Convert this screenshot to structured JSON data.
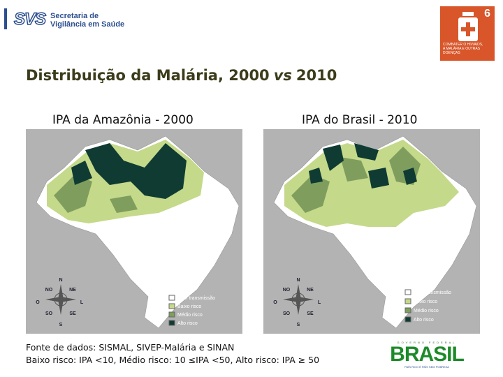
{
  "header": {
    "logo_abbr": "SVS",
    "logo_line1": "Secretaria de",
    "logo_line2": "Vigilância em Saúde"
  },
  "badge": {
    "number": "6",
    "lines": [
      "COMBATER O HIV/AIDS,",
      "A MALÁRIA E OUTRAS",
      "DOENÇAS"
    ]
  },
  "title": {
    "before": "Distribuição da Malária, 2000",
    "italic": "vs",
    "after": "2010"
  },
  "maps": [
    {
      "caption": "IPA da Amazônia - 2000",
      "legend": [
        "Sem transmissão",
        "Baixo risco",
        "Médio risco",
        "Alto risco"
      ]
    },
    {
      "caption": "IPA do Brasil - 2010",
      "legend": [
        "Sem transmissão",
        "Baixo risco",
        "Médio risco",
        "Alto risco"
      ]
    }
  ],
  "compass": {
    "n": "N",
    "no": "NO",
    "ne": "NE",
    "o": "O",
    "l": "L",
    "so": "SO",
    "se": "SE",
    "s": "S"
  },
  "footer": [
    "Fonte de dados: SISMAL, SIVEP-Malária e SINAN",
    "Baixo risco: IPA <10, Médio risco: 10 ≤IPA <50, Alto risco: IPA ≥ 50"
  ],
  "brasil": {
    "top": "GOVERNO FEDERAL",
    "name": "BRASIL",
    "slogan": "PAÍS RICO É PAÍS SEM POBREZA"
  }
}
